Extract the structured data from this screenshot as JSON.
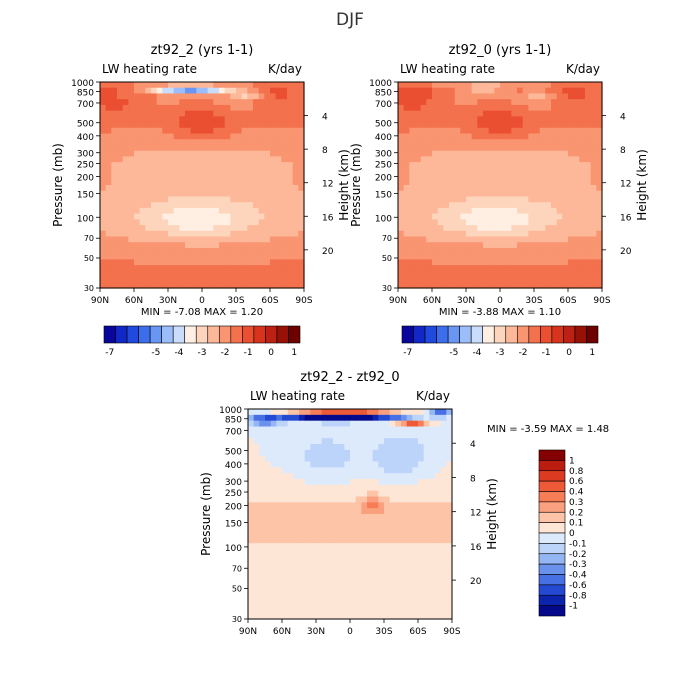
{
  "page": {
    "title": "DJF"
  },
  "common": {
    "left_label": "LW heating rate",
    "units": "K/day",
    "ylabel": "Pressure (mb)",
    "y2label": "Height (km)",
    "pressure_ticks": [
      {
        "v": 1000,
        "t": "1000"
      },
      {
        "v": 850,
        "t": "850"
      },
      {
        "v": 700,
        "t": "700"
      },
      {
        "v": 500,
        "t": "500"
      },
      {
        "v": 400,
        "t": "400"
      },
      {
        "v": 300,
        "t": "300"
      },
      {
        "v": 250,
        "t": "250"
      },
      {
        "v": 200,
        "t": "200"
      },
      {
        "v": 150,
        "t": "150"
      },
      {
        "v": 100,
        "t": "100"
      },
      {
        "v": 70,
        "t": "70"
      },
      {
        "v": 50,
        "t": "50"
      },
      {
        "v": 30,
        "t": "30"
      }
    ],
    "height_ticks": [
      {
        "km": 4,
        "t": "4"
      },
      {
        "km": 8,
        "t": "8"
      },
      {
        "km": 12,
        "t": "12"
      },
      {
        "km": 16,
        "t": "16"
      },
      {
        "km": 20,
        "t": "20"
      }
    ],
    "lat_ticks": [
      {
        "v": 90,
        "t": "90N"
      },
      {
        "v": 60,
        "t": "60N"
      },
      {
        "v": 30,
        "t": "30N"
      },
      {
        "v": 0,
        "t": "0"
      },
      {
        "v": -30,
        "t": "30S"
      },
      {
        "v": -60,
        "t": "60S"
      },
      {
        "v": -90,
        "t": "90S"
      }
    ]
  },
  "chart_data": [
    {
      "type": "heatmap",
      "title": "zt92_2 (yrs 1-1)",
      "left_label": "LW heating rate",
      "right_label": "K/day",
      "stats": "MIN =   -7.08   MAX =    1.20",
      "min": -7.08,
      "max": 1.2,
      "xlim": [
        90,
        -90
      ],
      "ylim": [
        1000,
        30
      ],
      "colorbar": {
        "orientation": "horizontal",
        "levels": [
          "-7",
          "-6.5",
          "-6",
          "-5.5",
          "-5",
          "-4.5",
          "-4",
          "-3.5",
          "-3",
          "-2.5",
          "-2",
          "-1.5",
          "-1",
          "-0.5",
          "0",
          "0.5",
          "1"
        ],
        "tick_labels": [
          "-7",
          "-5",
          "-4",
          "-3",
          "-2",
          "-1",
          "0",
          "1"
        ],
        "colors": [
          "#08069c",
          "#1127c8",
          "#2049de",
          "#3c6eec",
          "#6a96f3",
          "#9bbdfa",
          "#c9dcfb",
          "#ffefe2",
          "#fdd5bd",
          "#fcb898",
          "#f99570",
          "#f3714d",
          "#e94f30",
          "#d8341d",
          "#bd2114",
          "#981107",
          "#6f0000"
        ]
      }
    },
    {
      "type": "heatmap",
      "title": "zt92_0 (yrs 1-1)",
      "left_label": "LW heating rate",
      "right_label": "K/day",
      "stats": "MIN =   -3.88   MAX =    1.10",
      "min": -3.88,
      "max": 1.1,
      "xlim": [
        90,
        -90
      ],
      "ylim": [
        1000,
        30
      ],
      "colorbar": {
        "orientation": "horizontal",
        "levels": [
          "-7",
          "-6.5",
          "-6",
          "-5.5",
          "-5",
          "-4.5",
          "-4",
          "-3.5",
          "-3",
          "-2.5",
          "-2",
          "-1.5",
          "-1",
          "-0.5",
          "0",
          "0.5",
          "1"
        ],
        "tick_labels": [
          "-7",
          "-5",
          "-4",
          "-3",
          "-2",
          "-1",
          "0",
          "1"
        ],
        "colors": [
          "#08069c",
          "#1127c8",
          "#2049de",
          "#3c6eec",
          "#6a96f3",
          "#9bbdfa",
          "#c9dcfb",
          "#ffefe2",
          "#fdd5bd",
          "#fcb898",
          "#f99570",
          "#f3714d",
          "#e94f30",
          "#d8341d",
          "#bd2114",
          "#981107",
          "#6f0000"
        ]
      }
    },
    {
      "type": "heatmap",
      "title": "zt92_2 - zt92_0",
      "left_label": "LW heating rate",
      "right_label": "K/day",
      "stats": "MIN =   -3.59   MAX =    1.48",
      "min": -3.59,
      "max": 1.48,
      "xlim": [
        90,
        -90
      ],
      "ylim": [
        1000,
        30
      ],
      "colorbar": {
        "orientation": "vertical",
        "tick_labels": [
          "1",
          "0.8",
          "0.6",
          "0.4",
          "0.3",
          "0.2",
          "0.1",
          "0",
          "-0.1",
          "-0.2",
          "-0.3",
          "-0.4",
          "-0.6",
          "-0.8",
          "-1"
        ],
        "colors": [
          "#850000",
          "#bc1c10",
          "#dc3b22",
          "#ee5a38",
          "#f77d56",
          "#fba07e",
          "#fdc4a8",
          "#fee6d6",
          "#dceafc",
          "#bdd4fa",
          "#94b6f4",
          "#6a91ec",
          "#4670e3",
          "#2449d2",
          "#0c23ad",
          "#03098a"
        ]
      }
    }
  ]
}
